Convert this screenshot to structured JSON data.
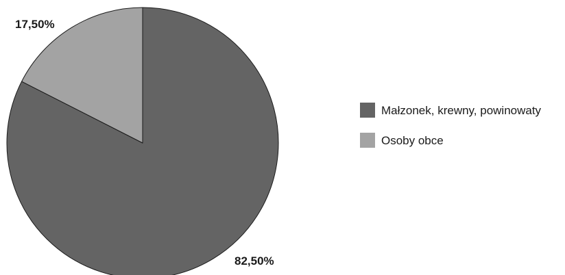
{
  "chart_data": {
    "type": "pie",
    "title": "",
    "categories": [
      "Małzonek, krewny, powinowaty",
      "Osoby obce"
    ],
    "values": [
      82.5,
      17.5
    ],
    "data_labels": [
      "82,50%",
      "17,50%"
    ],
    "colors": [
      "#646464",
      "#a3a3a3"
    ],
    "start_angle": "12 o'clock",
    "direction": "clockwise",
    "legend_position": "right"
  }
}
